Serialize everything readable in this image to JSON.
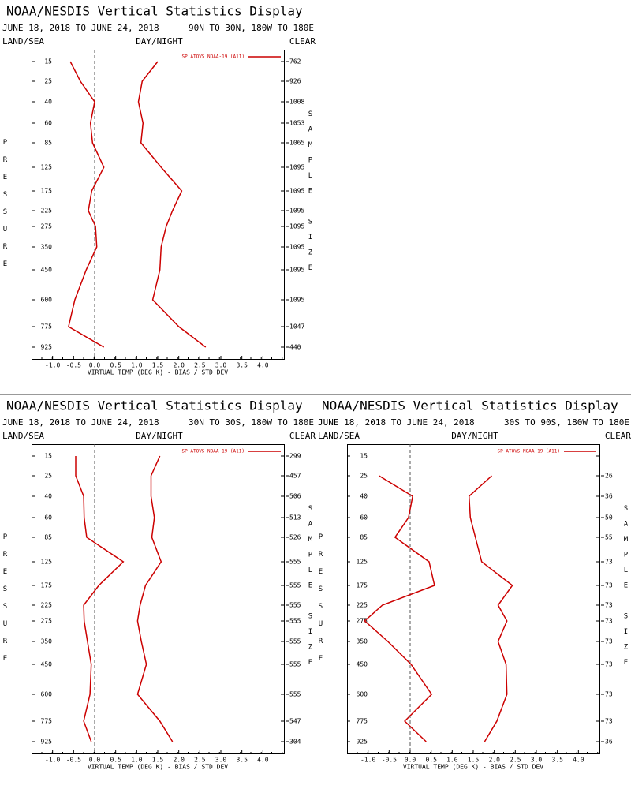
{
  "chart_data": [
    {
      "type": "line",
      "title": "NOAA/NESDIS Vertical Statistics Display",
      "subtitle": "JUNE 18, 2018 TO JUNE 24, 2018",
      "region": "90N TO 30N, 180W TO 180E",
      "left_label": "LAND/SEA",
      "center_label": "DAY/NIGHT",
      "right_label": "CLEAR",
      "legend": "SP ATOVS NOAA-19 (A11)",
      "xlabel": "VIRTUAL TEMP (DEG K) - BIAS / STD DEV",
      "ylabel": "PRESSURE",
      "y2label": "SAMPLE SIZE",
      "categories": [
        15,
        25,
        40,
        60,
        85,
        125,
        175,
        225,
        275,
        350,
        450,
        600,
        775,
        925
      ],
      "sample_sizes": [
        762,
        926,
        1008,
        1053,
        1065,
        1095,
        1095,
        1095,
        1095,
        1095,
        1095,
        1095,
        1047,
        440
      ],
      "series": [
        {
          "color": "#cc0000",
          "values": [
            -0.58,
            -0.34,
            0.0,
            -0.1,
            -0.05,
            0.22,
            -0.07,
            -0.15,
            0.02,
            0.05,
            -0.2,
            -0.47,
            -0.62,
            0.22
          ]
        },
        {
          "color": "#cc0000",
          "values": [
            1.5,
            1.13,
            1.04,
            1.15,
            1.1,
            1.58,
            2.07,
            1.85,
            1.7,
            1.58,
            1.55,
            1.38,
            2.0,
            2.64
          ]
        }
      ],
      "xlim": [
        -1.5,
        4.5
      ],
      "xticks": [
        {
          "value": -1,
          "label": "-1.0"
        },
        -0.5,
        {
          "value": 0,
          "label": "0.0"
        },
        0.5,
        {
          "value": 1,
          "label": "1.0"
        },
        1.5,
        {
          "value": 2,
          "label": "2.0"
        },
        2.5,
        {
          "value": 3,
          "label": "3.0"
        },
        3.5,
        {
          "value": 4,
          "label": "4.0"
        }
      ],
      "zero_line": true
    },
    {
      "type": "line",
      "title": "NOAA/NESDIS Vertical Statistics Display",
      "subtitle": "JUNE 18, 2018 TO JUNE 24, 2018",
      "region": "30N TO 30S, 180W TO 180E",
      "left_label": "LAND/SEA",
      "center_label": "DAY/NIGHT",
      "right_label": "CLEAR",
      "legend": "SP ATOVS NOAA-19 (A11)",
      "xlabel": "VIRTUAL TEMP (DEG K) - BIAS / STD DEV",
      "ylabel": "PRESSURE",
      "y2label": "SAMPLE SIZE",
      "categories": [
        15,
        25,
        40,
        60,
        85,
        125,
        175,
        225,
        275,
        350,
        450,
        600,
        775,
        925
      ],
      "sample_sizes": [
        299,
        457,
        506,
        513,
        526,
        555,
        555,
        555,
        555,
        555,
        555,
        555,
        547,
        304
      ],
      "series": [
        {
          "color": "#cc0000",
          "values": [
            -0.45,
            -0.45,
            -0.26,
            -0.25,
            -0.19,
            0.68,
            0.1,
            -0.26,
            -0.25,
            -0.17,
            -0.08,
            -0.11,
            -0.26,
            -0.08
          ]
        },
        {
          "color": "#cc0000",
          "values": [
            1.55,
            1.34,
            1.34,
            1.42,
            1.36,
            1.58,
            1.21,
            1.08,
            1.02,
            1.11,
            1.23,
            1.02,
            1.55,
            1.85
          ]
        }
      ],
      "xlim": [
        -1.5,
        4.5
      ],
      "xticks": [
        {
          "value": -1,
          "label": "-1.0"
        },
        -0.5,
        {
          "value": 0,
          "label": "0.0"
        },
        0.5,
        {
          "value": 1,
          "label": "1.0"
        },
        1.5,
        {
          "value": 2,
          "label": "2.0"
        },
        2.5,
        {
          "value": 3,
          "label": "3.0"
        },
        3.5,
        {
          "value": 4,
          "label": "4.0"
        }
      ],
      "zero_line": true
    },
    {
      "type": "line",
      "title": "NOAA/NESDIS Vertical Statistics Display",
      "subtitle": "JUNE 18, 2018 TO JUNE 24, 2018",
      "region": "30S TO 90S, 180W TO 180E",
      "left_label": "LAND/SEA",
      "center_label": "DAY/NIGHT",
      "right_label": "CLEAR",
      "legend": "SP ATOVS NOAA-19 (A11)",
      "xlabel": "VIRTUAL TEMP (DEG K) - BIAS / STD DEV",
      "ylabel": "PRESSURE",
      "y2label": "SAMPLE SIZE",
      "categories": [
        15,
        25,
        40,
        60,
        85,
        125,
        175,
        225,
        275,
        350,
        450,
        600,
        775,
        925
      ],
      "sample_sizes": [
        null,
        26,
        36,
        50,
        55,
        73,
        73,
        73,
        73,
        73,
        73,
        73,
        73,
        36
      ],
      "series": [
        {
          "color": "#cc0000",
          "values": [
            null,
            -0.74,
            0.06,
            -0.04,
            -0.36,
            0.45,
            0.58,
            -0.66,
            -1.08,
            -0.53,
            0.02,
            0.51,
            -0.13,
            0.38
          ]
        },
        {
          "color": "#cc0000",
          "values": [
            null,
            1.94,
            1.4,
            1.43,
            1.55,
            1.7,
            2.43,
            2.09,
            2.3,
            2.09,
            2.28,
            2.3,
            2.06,
            1.77
          ]
        }
      ],
      "xlim": [
        -1.5,
        4.5
      ],
      "xticks": [
        {
          "value": -1,
          "label": "-1.0"
        },
        -0.5,
        {
          "value": 0,
          "label": "0.0"
        },
        0.5,
        {
          "value": 1,
          "label": "1.0"
        },
        1.5,
        {
          "value": 2,
          "label": "2.0"
        },
        2.5,
        {
          "value": 3,
          "label": "3.0"
        },
        3.5,
        {
          "value": 4,
          "label": "4.0"
        }
      ],
      "zero_line": true
    }
  ]
}
